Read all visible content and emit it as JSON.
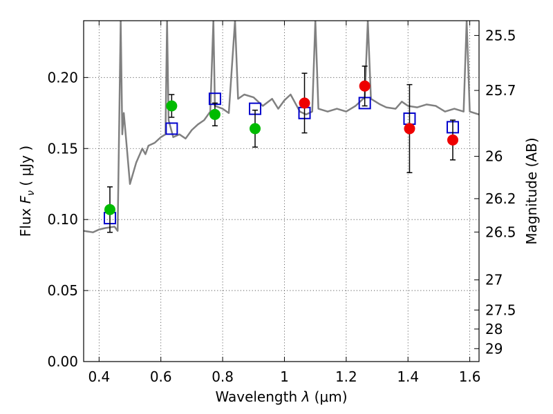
{
  "chart_data": {
    "type": "scatter",
    "xlabel": "Wavelength  λ (μm)",
    "ylabel": "Flux  F_ν  ( μJy )",
    "ylabel_parts": {
      "prefix": "Flux  ",
      "symbol": "F",
      "sub": "ν",
      "suffix": "  ( μJy )"
    },
    "xlabel_parts": {
      "prefix": "Wavelength  ",
      "symbol": "λ",
      "suffix": " (μm)"
    },
    "y2label": "Magnitude (AB)",
    "xlim": [
      0.35,
      1.63
    ],
    "ylim": [
      0.0,
      0.24
    ],
    "grid": true,
    "x_ticks": [
      {
        "value": 0.4,
        "label": "0.4"
      },
      {
        "value": 0.6,
        "label": "0.6"
      },
      {
        "value": 0.8,
        "label": "0.8"
      },
      {
        "value": 1.0,
        "label": "1"
      },
      {
        "value": 1.2,
        "label": "1.2"
      },
      {
        "value": 1.4,
        "label": "1.4"
      },
      {
        "value": 1.6,
        "label": "1.6"
      }
    ],
    "y_ticks": [
      {
        "value": 0.0,
        "label": "0.00"
      },
      {
        "value": 0.05,
        "label": "0.05"
      },
      {
        "value": 0.1,
        "label": "0.10"
      },
      {
        "value": 0.15,
        "label": "0.15"
      },
      {
        "value": 0.2,
        "label": "0.20"
      }
    ],
    "mag_ticks": [
      {
        "value": 0.2296,
        "label": "25.5"
      },
      {
        "value": 0.1909,
        "label": "25.7"
      },
      {
        "value": 0.1445,
        "label": "26"
      },
      {
        "value": 0.1147,
        "label": "26.2"
      },
      {
        "value": 0.0912,
        "label": "26.5"
      },
      {
        "value": 0.0575,
        "label": "27"
      },
      {
        "value": 0.0363,
        "label": "27.5"
      },
      {
        "value": 0.0229,
        "label": "28"
      },
      {
        "value": 0.0091,
        "label": "29"
      }
    ],
    "colors": {
      "spectrum": "#808080",
      "model": "#0000cc",
      "green": "#00bb00",
      "red": "#ee0000",
      "errorbar": "#000000"
    },
    "series": [
      {
        "kind": "line",
        "points": [
          [
            0.35,
            0.092
          ],
          [
            0.38,
            0.091
          ],
          [
            0.4,
            0.093
          ],
          [
            0.42,
            0.094
          ],
          [
            0.45,
            0.095
          ],
          [
            0.46,
            0.092
          ],
          [
            0.47,
            0.24
          ],
          [
            0.475,
            0.16
          ],
          [
            0.48,
            0.175
          ],
          [
            0.49,
            0.15
          ],
          [
            0.5,
            0.125
          ],
          [
            0.52,
            0.14
          ],
          [
            0.54,
            0.15
          ],
          [
            0.55,
            0.146
          ],
          [
            0.56,
            0.152
          ],
          [
            0.58,
            0.154
          ],
          [
            0.6,
            0.158
          ],
          [
            0.615,
            0.16
          ],
          [
            0.62,
            0.24
          ],
          [
            0.625,
            0.17
          ],
          [
            0.64,
            0.158
          ],
          [
            0.66,
            0.16
          ],
          [
            0.68,
            0.157
          ],
          [
            0.7,
            0.163
          ],
          [
            0.72,
            0.167
          ],
          [
            0.74,
            0.17
          ],
          [
            0.76,
            0.176
          ],
          [
            0.77,
            0.24
          ],
          [
            0.775,
            0.18
          ],
          [
            0.8,
            0.178
          ],
          [
            0.82,
            0.175
          ],
          [
            0.84,
            0.24
          ],
          [
            0.85,
            0.185
          ],
          [
            0.87,
            0.188
          ],
          [
            0.9,
            0.186
          ],
          [
            0.93,
            0.18
          ],
          [
            0.96,
            0.185
          ],
          [
            0.98,
            0.178
          ],
          [
            1.0,
            0.184
          ],
          [
            1.02,
            0.188
          ],
          [
            1.05,
            0.176
          ],
          [
            1.07,
            0.174
          ],
          [
            1.09,
            0.176
          ],
          [
            1.1,
            0.24
          ],
          [
            1.11,
            0.178
          ],
          [
            1.14,
            0.176
          ],
          [
            1.17,
            0.178
          ],
          [
            1.2,
            0.176
          ],
          [
            1.23,
            0.18
          ],
          [
            1.26,
            0.186
          ],
          [
            1.27,
            0.24
          ],
          [
            1.28,
            0.185
          ],
          [
            1.31,
            0.181
          ],
          [
            1.33,
            0.179
          ],
          [
            1.36,
            0.178
          ],
          [
            1.38,
            0.183
          ],
          [
            1.4,
            0.18
          ],
          [
            1.43,
            0.179
          ],
          [
            1.46,
            0.181
          ],
          [
            1.49,
            0.18
          ],
          [
            1.52,
            0.176
          ],
          [
            1.55,
            0.178
          ],
          [
            1.58,
            0.176
          ],
          [
            1.59,
            0.24
          ],
          [
            1.6,
            0.176
          ],
          [
            1.63,
            0.174
          ]
        ]
      },
      {
        "kind": "model-squares",
        "points": [
          [
            0.435,
            0.101
          ],
          [
            0.635,
            0.164
          ],
          [
            0.775,
            0.185
          ],
          [
            0.905,
            0.178
          ],
          [
            1.065,
            0.175
          ],
          [
            1.26,
            0.182
          ],
          [
            1.405,
            0.171
          ],
          [
            1.545,
            0.165
          ]
        ]
      },
      {
        "kind": "green-points",
        "points": [
          {
            "x": 0.435,
            "y": 0.107,
            "err": 0.016
          },
          {
            "x": 0.635,
            "y": 0.18,
            "err": 0.008
          },
          {
            "x": 0.775,
            "y": 0.174,
            "err": 0.008
          },
          {
            "x": 0.905,
            "y": 0.164,
            "err": 0.013
          }
        ]
      },
      {
        "kind": "red-points",
        "points": [
          {
            "x": 1.065,
            "y": 0.182,
            "err": 0.021
          },
          {
            "x": 1.26,
            "y": 0.194,
            "err": 0.014
          },
          {
            "x": 1.405,
            "y": 0.164,
            "err": 0.031
          },
          {
            "x": 1.545,
            "y": 0.156,
            "err": 0.014
          }
        ]
      }
    ]
  }
}
